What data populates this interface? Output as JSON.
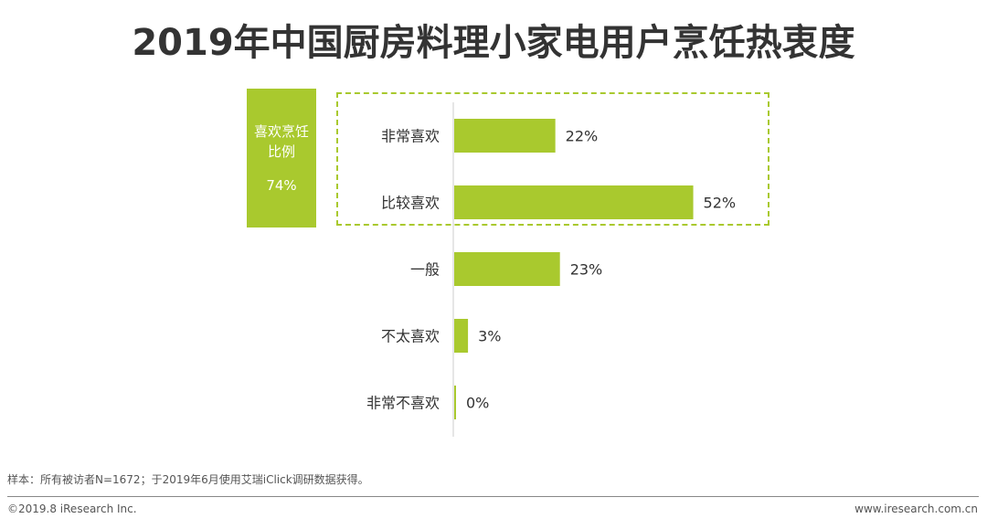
{
  "chart_data": {
    "type": "bar",
    "orientation": "horizontal",
    "title": "2019年中国厨房料理小家电用户烹饪热衷度",
    "categories": [
      "非常喜欢",
      "比较喜欢",
      "一般",
      "不太喜欢",
      "非常不喜欢"
    ],
    "values": [
      22,
      52,
      23,
      3,
      0
    ],
    "value_labels": [
      "22%",
      "52%",
      "23%",
      "3%",
      "0%"
    ],
    "unit": "%",
    "bar_color": "#a9c92e",
    "xlim": [
      0,
      100
    ],
    "grid": false,
    "legend": "none"
  },
  "summary": {
    "label": "喜欢烹饪比例",
    "value": "74%",
    "covers": [
      "非常喜欢",
      "比较喜欢"
    ]
  },
  "footnote": "样本：所有被访者N=1672；于2019年6月使用艾瑞iClick调研数据获得。",
  "footer": {
    "copyright": "©2019.8 iResearch Inc.",
    "site": "www.iresearch.com.cn"
  },
  "colors": {
    "accent": "#a9c92e",
    "text": "#333333"
  }
}
